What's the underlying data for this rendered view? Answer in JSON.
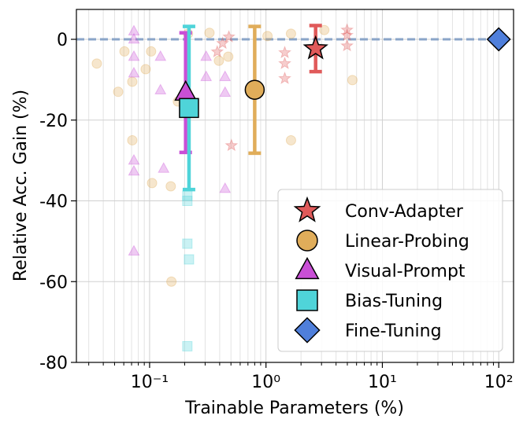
{
  "chart_data": {
    "type": "scatter",
    "xlabel": "Trainable Parameters (%)",
    "ylabel": "Relative Acc. Gain (%)",
    "xscale": "log",
    "xlim": [
      0.0235,
      134
    ],
    "ylim": [
      -80,
      7.4
    ],
    "xticks": [
      {
        "value": 0.1,
        "label": "10⁻¹"
      },
      {
        "value": 1,
        "label": "10⁰"
      },
      {
        "value": 10,
        "label": "10¹"
      },
      {
        "value": 100,
        "label": "10²"
      }
    ],
    "yticks": [
      0,
      -20,
      -40,
      -60,
      -80
    ],
    "grid": true,
    "minor_grid": true,
    "hline": 0,
    "legend": "lower right",
    "series": [
      {
        "name": "Conv-Adapter",
        "color": "#e05a5a",
        "marker": "star",
        "x": [
          2.67
        ],
        "values": [
          -2.3
        ],
        "errors": [
          5.7
        ],
        "background": {
          "x": [
            0.381,
            0.424,
            0.48,
            0.505,
            1.45,
            1.45,
            1.45,
            4.97,
            4.97,
            4.97
          ],
          "values": [
            -3.1,
            -1,
            0.6,
            -26.3,
            -3.3,
            -6,
            -9.7,
            2.3,
            1,
            -1.6
          ]
        }
      },
      {
        "name": "Linear-Probing",
        "color": "#e0ad5a",
        "marker": "circle",
        "x": [
          0.8
        ],
        "values": [
          -12.5
        ],
        "errors": [
          15.7
        ],
        "background": {
          "x": [
            0.0352,
            0.0537,
            0.0608,
            0.071,
            0.071,
            0.0925,
            0.103,
            0.105,
            0.152,
            0.154,
            0.175,
            0.214,
            0.327,
            0.394,
            0.474,
            1.03,
            1.64,
            3.17,
            5.53,
            1.64
          ],
          "values": [
            -6,
            -13,
            -3,
            -10.5,
            -25,
            -7.4,
            -3,
            -35.6,
            -36.4,
            -60,
            -15.4,
            1.4,
            1.6,
            -5.3,
            -4.3,
            0.8,
            1.4,
            2.3,
            -10.1,
            -25
          ]
        }
      },
      {
        "name": "Visual-Prompt",
        "color": "#c94fd6",
        "marker": "triangle",
        "x": [
          0.204
        ],
        "values": [
          -13.2
        ],
        "errors": [
          14.8
        ],
        "background": {
          "x": [
            0.0733,
            0.0733,
            0.0733,
            0.0733,
            0.0733,
            0.0733,
            0.0733,
            0.124,
            0.132,
            0.124,
            0.306,
            0.306,
            0.445,
            0.445,
            0.445
          ],
          "values": [
            2,
            0,
            -4.3,
            -8.4,
            -30,
            -32.7,
            -52.5,
            -4.3,
            -32,
            -12.6,
            -4.3,
            -9.3,
            -9.3,
            -13.2,
            -37
          ]
        }
      },
      {
        "name": "Bias-Tuning",
        "color": "#4fd4d9",
        "marker": "square",
        "x": [
          0.218
        ],
        "values": [
          -17
        ],
        "errors": [
          20.2
        ],
        "background": {
          "x": [
            0.211,
            0.211,
            0.211,
            0.218,
            0.211
          ],
          "values": [
            -38.7,
            -40,
            -50.6,
            -54.5,
            -76
          ]
        }
      },
      {
        "name": "Fine-Tuning",
        "color": "#4f7fdb",
        "marker": "diamond",
        "x": [
          100
        ],
        "values": [
          0
        ]
      }
    ]
  }
}
